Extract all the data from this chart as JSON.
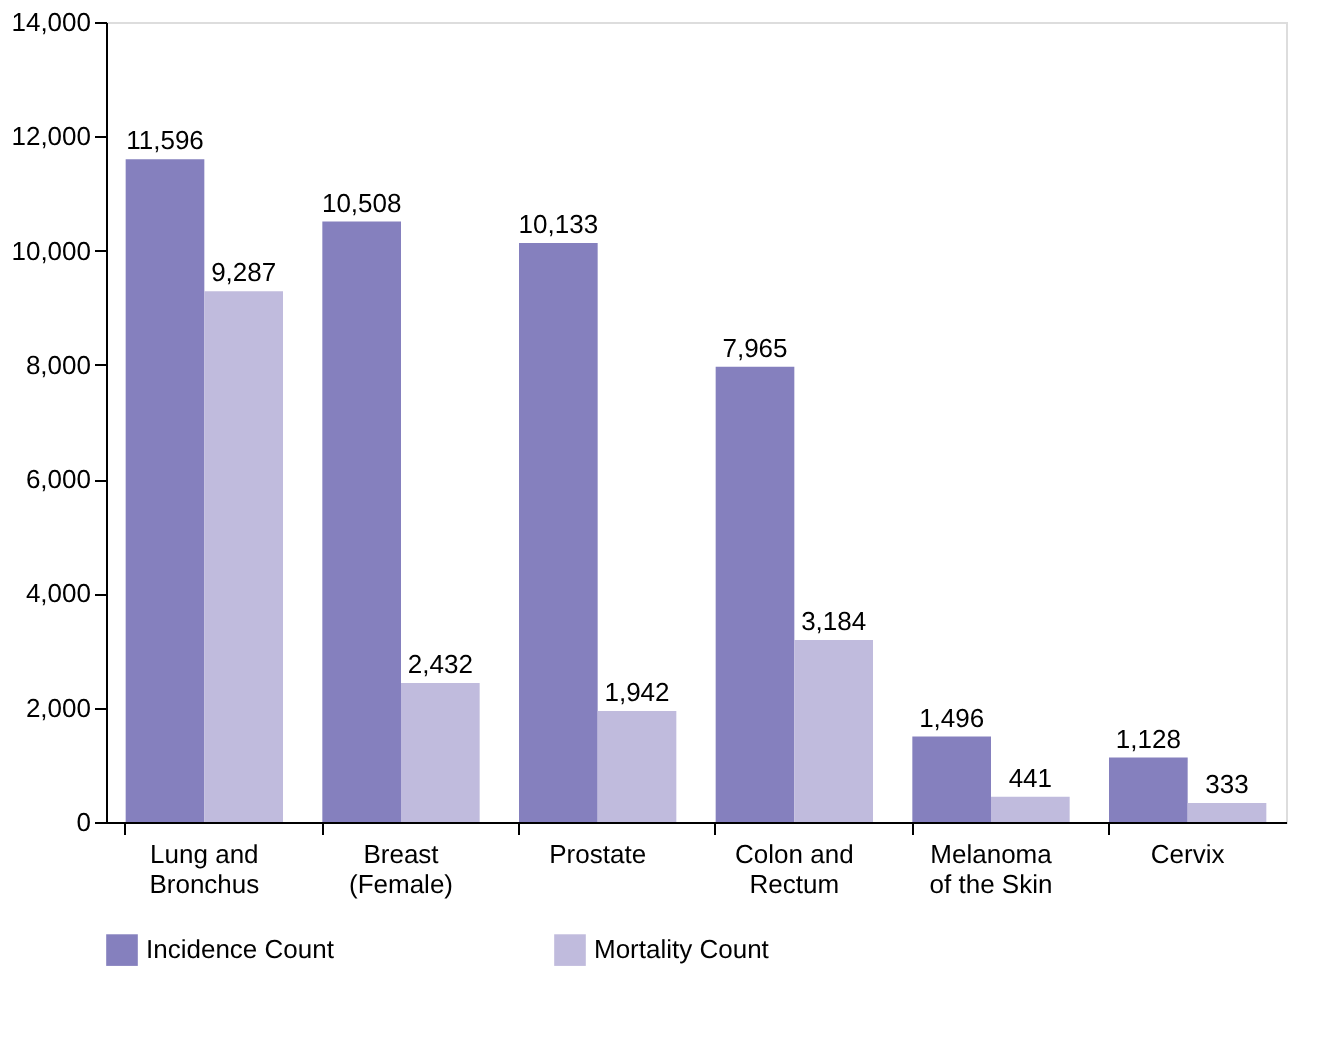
{
  "chart_data": {
    "type": "bar",
    "categories": [
      "Lung and\nBronchus",
      "Breast\n(Female)",
      "Prostate",
      "Colon and\nRectum",
      "Melanoma\nof the Skin",
      "Cervix"
    ],
    "series": [
      {
        "name": "Incidence Count",
        "color": "#8580be",
        "values": [
          11596,
          10508,
          10133,
          7965,
          1496,
          1128
        ],
        "value_labels": [
          "11,596",
          "10,508",
          "10,133",
          "7,965",
          "1,496",
          "1,128"
        ]
      },
      {
        "name": "Mortality Count",
        "color": "#c0bbdd",
        "values": [
          9287,
          2432,
          1942,
          3184,
          441,
          333
        ],
        "value_labels": [
          "9,287",
          "2,432",
          "1,942",
          "3,184",
          "441",
          "333"
        ]
      }
    ],
    "ylim": [
      0,
      14000
    ],
    "yticks": [
      0,
      {
        "value": 2000,
        "label": "2,000"
      },
      {
        "value": 4000,
        "label": "4,000"
      },
      {
        "value": 6000,
        "label": "6,000"
      },
      {
        "value": 8000,
        "label": "8,000"
      },
      {
        "value": 10000,
        "label": "10,000"
      },
      {
        "value": 12000,
        "label": "12,000"
      },
      {
        "value": 14000,
        "label": "14,000"
      }
    ],
    "grid": false,
    "legend": "bottom left"
  }
}
